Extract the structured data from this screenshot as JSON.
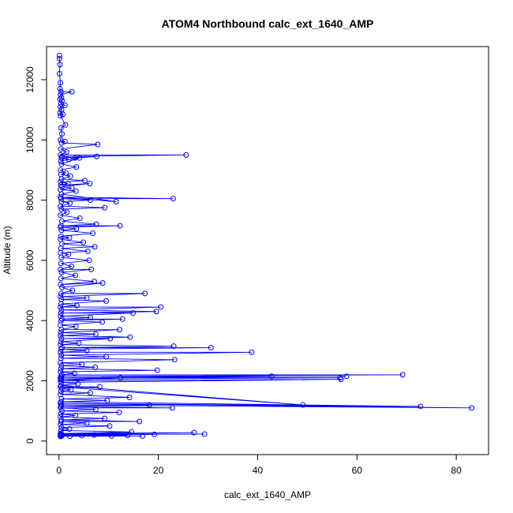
{
  "chart_data": {
    "type": "line",
    "title": "ATOM4 Northbound calc_ext_1640_AMP",
    "xlabel": "calc_ext_1640_AMP",
    "ylabel": "Altitude (m)",
    "xlim": [
      -2.5,
      86.5
    ],
    "ylim": [
      -450,
      13100
    ],
    "x_ticks": [
      0,
      20,
      40,
      60,
      80
    ],
    "y_ticks": [
      0,
      2000,
      4000,
      6000,
      8000,
      10000,
      12000
    ],
    "grid": false,
    "markers": "open-circle",
    "colors": {
      "series": "#0000ff",
      "axis": "#000000"
    },
    "series": [
      {
        "name": "",
        "points": [
          [
            0.1,
            12800
          ],
          [
            0.1,
            12700
          ],
          [
            0.2,
            12500
          ],
          [
            0.1,
            12200
          ],
          [
            0.3,
            11900
          ],
          [
            0.2,
            11700
          ],
          [
            0.4,
            11600
          ],
          [
            2.6,
            11600
          ],
          [
            0.3,
            11500
          ],
          [
            0.5,
            11400
          ],
          [
            0.2,
            11350
          ],
          [
            0.6,
            11300
          ],
          [
            0.4,
            11200
          ],
          [
            1.2,
            11150
          ],
          [
            0.3,
            11100
          ],
          [
            0.5,
            11000
          ],
          [
            0.2,
            10900
          ],
          [
            0.8,
            10850
          ],
          [
            0.3,
            10800
          ],
          [
            1.3,
            10500
          ],
          [
            0.4,
            10400
          ],
          [
            0.6,
            10200
          ],
          [
            0.3,
            10000
          ],
          [
            1.2,
            9950
          ],
          [
            0.5,
            9900
          ],
          [
            7.8,
            9850
          ],
          [
            0.4,
            9700
          ],
          [
            1.5,
            9600
          ],
          [
            0.3,
            9500
          ],
          [
            25.6,
            9500
          ],
          [
            0.6,
            9450
          ],
          [
            3.2,
            9400
          ],
          [
            7.6,
            9450
          ],
          [
            0.5,
            9400
          ],
          [
            2.0,
            9350
          ],
          [
            0.4,
            9300
          ],
          [
            4.1,
            9400
          ],
          [
            0.5,
            9200
          ],
          [
            3.5,
            9100
          ],
          [
            0.3,
            9000
          ],
          [
            1.4,
            8900
          ],
          [
            0.4,
            8850
          ],
          [
            2.3,
            8800
          ],
          [
            0.5,
            8700
          ],
          [
            5.2,
            8650
          ],
          [
            0.3,
            8600
          ],
          [
            1.8,
            8550
          ],
          [
            0.4,
            8500
          ],
          [
            6.2,
            8550
          ],
          [
            0.6,
            8450
          ],
          [
            2.6,
            8400
          ],
          [
            0.3,
            8350
          ],
          [
            3.4,
            8300
          ],
          [
            0.5,
            8200
          ],
          [
            11.5,
            7950
          ],
          [
            0.3,
            8100
          ],
          [
            23.0,
            8050
          ],
          [
            0.4,
            8050
          ],
          [
            6.3,
            8000
          ],
          [
            0.5,
            7950
          ],
          [
            2.2,
            7900
          ],
          [
            0.3,
            7800
          ],
          [
            9.2,
            7750
          ],
          [
            0.5,
            7700
          ],
          [
            1.6,
            7600
          ],
          [
            0.3,
            7500
          ],
          [
            4.2,
            7400
          ],
          [
            0.6,
            7300
          ],
          [
            7.5,
            7200
          ],
          [
            0.4,
            7150
          ],
          [
            12.3,
            7150
          ],
          [
            0.3,
            7100
          ],
          [
            3.5,
            7050
          ],
          [
            0.5,
            7000
          ],
          [
            6.8,
            6900
          ],
          [
            0.4,
            6800
          ],
          [
            2.1,
            6750
          ],
          [
            0.3,
            6700
          ],
          [
            4.9,
            6600
          ],
          [
            0.6,
            6550
          ],
          [
            7.2,
            6450
          ],
          [
            0.4,
            6400
          ],
          [
            5.8,
            6300
          ],
          [
            0.3,
            6250
          ],
          [
            1.9,
            6200
          ],
          [
            0.5,
            6100
          ],
          [
            6.1,
            6000
          ],
          [
            0.4,
            5900
          ],
          [
            2.5,
            5800
          ],
          [
            0.3,
            5700
          ],
          [
            6.5,
            5700
          ],
          [
            0.5,
            5600
          ],
          [
            3.3,
            5500
          ],
          [
            0.4,
            5400
          ],
          [
            7.1,
            5300
          ],
          [
            0.3,
            5200
          ],
          [
            8.8,
            5250
          ],
          [
            0.6,
            5100
          ],
          [
            2.7,
            5000
          ],
          [
            0.4,
            4900
          ],
          [
            17.3,
            4900
          ],
          [
            0.3,
            4800
          ],
          [
            5.6,
            4750
          ],
          [
            0.5,
            4700
          ],
          [
            9.5,
            4650
          ],
          [
            0.4,
            4550
          ],
          [
            3.6,
            4500
          ],
          [
            0.3,
            4450
          ],
          [
            20.5,
            4450
          ],
          [
            0.5,
            4350
          ],
          [
            19.6,
            4300
          ],
          [
            0.4,
            4250
          ],
          [
            14.9,
            4250
          ],
          [
            0.3,
            4150
          ],
          [
            6.3,
            4100
          ],
          [
            0.6,
            4050
          ],
          [
            12.8,
            4050
          ],
          [
            0.4,
            4000
          ],
          [
            8.7,
            3950
          ],
          [
            0.3,
            3850
          ],
          [
            3.4,
            3800
          ],
          [
            0.5,
            3700
          ],
          [
            12.2,
            3700
          ],
          [
            0.4,
            3600
          ],
          [
            7.4,
            3550
          ],
          [
            0.3,
            3500
          ],
          [
            14.3,
            3450
          ],
          [
            0.5,
            3400
          ],
          [
            10.3,
            3400
          ],
          [
            0.4,
            3300
          ],
          [
            4.0,
            3250
          ],
          [
            0.3,
            3200
          ],
          [
            23.1,
            3150
          ],
          [
            0.6,
            3100
          ],
          [
            30.6,
            3100
          ],
          [
            0.4,
            3050
          ],
          [
            5.6,
            3000
          ],
          [
            0.3,
            2950
          ],
          [
            38.8,
            2950
          ],
          [
            0.5,
            2850
          ],
          [
            9.5,
            2800
          ],
          [
            0.4,
            2750
          ],
          [
            23.3,
            2700
          ],
          [
            0.3,
            2600
          ],
          [
            4.6,
            2550
          ],
          [
            0.5,
            2500
          ],
          [
            7.3,
            2450
          ],
          [
            0.4,
            2400
          ],
          [
            19.8,
            2350
          ],
          [
            0.3,
            2300
          ],
          [
            3.1,
            2250
          ],
          [
            0.6,
            2200
          ],
          [
            69.2,
            2200
          ],
          [
            0.4,
            2150
          ],
          [
            42.8,
            2150
          ],
          [
            0.3,
            2100
          ],
          [
            57.9,
            2150
          ],
          [
            0.5,
            2100
          ],
          [
            56.6,
            2100
          ],
          [
            0.4,
            2050
          ],
          [
            12.4,
            2100
          ],
          [
            0.3,
            2000
          ],
          [
            56.8,
            2050
          ],
          [
            0.5,
            1950
          ],
          [
            3.8,
            1900
          ],
          [
            0.4,
            1850
          ],
          [
            49.1,
            1200
          ],
          [
            0.3,
            1800
          ],
          [
            8.2,
            1800
          ],
          [
            0.6,
            1750
          ],
          [
            2.4,
            1700
          ],
          [
            0.4,
            1650
          ],
          [
            6.3,
            1600
          ],
          [
            0.3,
            1550
          ],
          [
            14.2,
            1450
          ],
          [
            0.5,
            1400
          ],
          [
            9.7,
            1350
          ],
          [
            0.4,
            1300
          ],
          [
            72.8,
            1150
          ],
          [
            0.3,
            1250
          ],
          [
            83.1,
            1100
          ],
          [
            0.5,
            1200
          ],
          [
            18.2,
            1200
          ],
          [
            0.4,
            1150
          ],
          [
            22.8,
            1100
          ],
          [
            0.3,
            1100
          ],
          [
            7.4,
            1050
          ],
          [
            0.6,
            1000
          ],
          [
            12.1,
            950
          ],
          [
            0.4,
            900
          ],
          [
            3.3,
            850
          ],
          [
            0.3,
            800
          ],
          [
            9.2,
            750
          ],
          [
            0.5,
            700
          ],
          [
            16.2,
            650
          ],
          [
            0.4,
            650
          ],
          [
            5.6,
            600
          ],
          [
            0.3,
            550
          ],
          [
            10.2,
            500
          ],
          [
            0.5,
            450
          ],
          [
            2.1,
            400
          ],
          [
            0.4,
            350
          ],
          [
            14.6,
            300
          ],
          [
            0.3,
            250
          ],
          [
            27.2,
            280
          ],
          [
            0.5,
            230
          ],
          [
            29.3,
            230
          ],
          [
            0.4,
            220
          ],
          [
            19.2,
            220
          ],
          [
            0.3,
            200
          ],
          [
            7.1,
            200
          ],
          [
            0.5,
            190
          ],
          [
            13.8,
            190
          ],
          [
            0.4,
            180
          ],
          [
            4.6,
            180
          ],
          [
            0.3,
            170
          ],
          [
            10.6,
            170
          ],
          [
            0.5,
            165
          ],
          [
            16.8,
            165
          ],
          [
            0.4,
            160
          ],
          [
            2.2,
            160
          ],
          [
            0.3,
            155
          ]
        ]
      }
    ]
  }
}
